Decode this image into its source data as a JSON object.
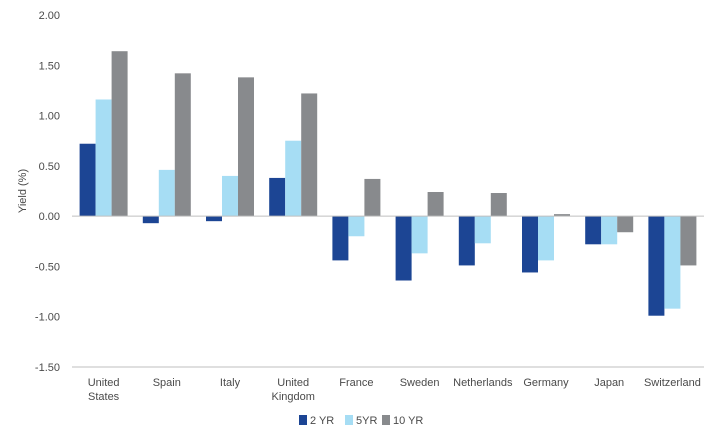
{
  "chart_data": {
    "type": "bar",
    "ylabel": "Yield (%)",
    "ylim": [
      -1.5,
      2.0
    ],
    "yticks": [
      "2.00",
      "1.50",
      "1.00",
      "0.50",
      "0.00",
      "-0.50",
      "-1.00",
      "-1.50"
    ],
    "ytick_values": [
      2.0,
      1.5,
      1.0,
      0.5,
      0.0,
      -0.5,
      -1.0,
      -1.5
    ],
    "categories": [
      [
        "United",
        "States"
      ],
      [
        "Spain"
      ],
      [
        "Italy"
      ],
      [
        "United",
        "Kingdom"
      ],
      [
        "France"
      ],
      [
        "Sweden"
      ],
      [
        "Netherlands"
      ],
      [
        "Germany"
      ],
      [
        "Japan"
      ],
      [
        "Switzerland"
      ]
    ],
    "series": [
      {
        "name": "2 YR",
        "color": "#1c4594",
        "values": [
          0.72,
          -0.07,
          -0.05,
          0.38,
          -0.44,
          -0.64,
          -0.49,
          -0.56,
          -0.28,
          -0.99
        ]
      },
      {
        "name": "5YR",
        "color": "#a6ddf4",
        "values": [
          1.16,
          0.46,
          0.4,
          0.75,
          -0.2,
          -0.37,
          -0.27,
          -0.44,
          -0.28,
          -0.92
        ]
      },
      {
        "name": "10 YR",
        "color": "#888a8d",
        "values": [
          1.64,
          1.42,
          1.38,
          1.22,
          0.37,
          0.24,
          0.23,
          0.02,
          -0.16,
          -0.49
        ]
      }
    ],
    "grid": false,
    "legend_position": "bottom"
  }
}
